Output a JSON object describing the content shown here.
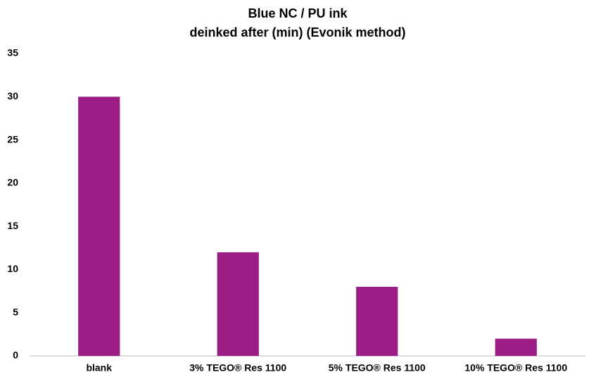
{
  "chart_data": {
    "type": "bar",
    "title": "Blue NC / PU ink",
    "subtitle": "deinked after (min) (Evonik method)",
    "categories": [
      "blank",
      "3% TEGO® Res 1100",
      "5% TEGO® Res 1100",
      "10% TEGO® Res 1100"
    ],
    "values": [
      30,
      12,
      8,
      2
    ],
    "color": "#9b1c84",
    "ylim": [
      0,
      35
    ],
    "yticks": [
      0,
      5,
      10,
      15,
      20,
      25,
      30,
      35
    ],
    "grid": false
  }
}
